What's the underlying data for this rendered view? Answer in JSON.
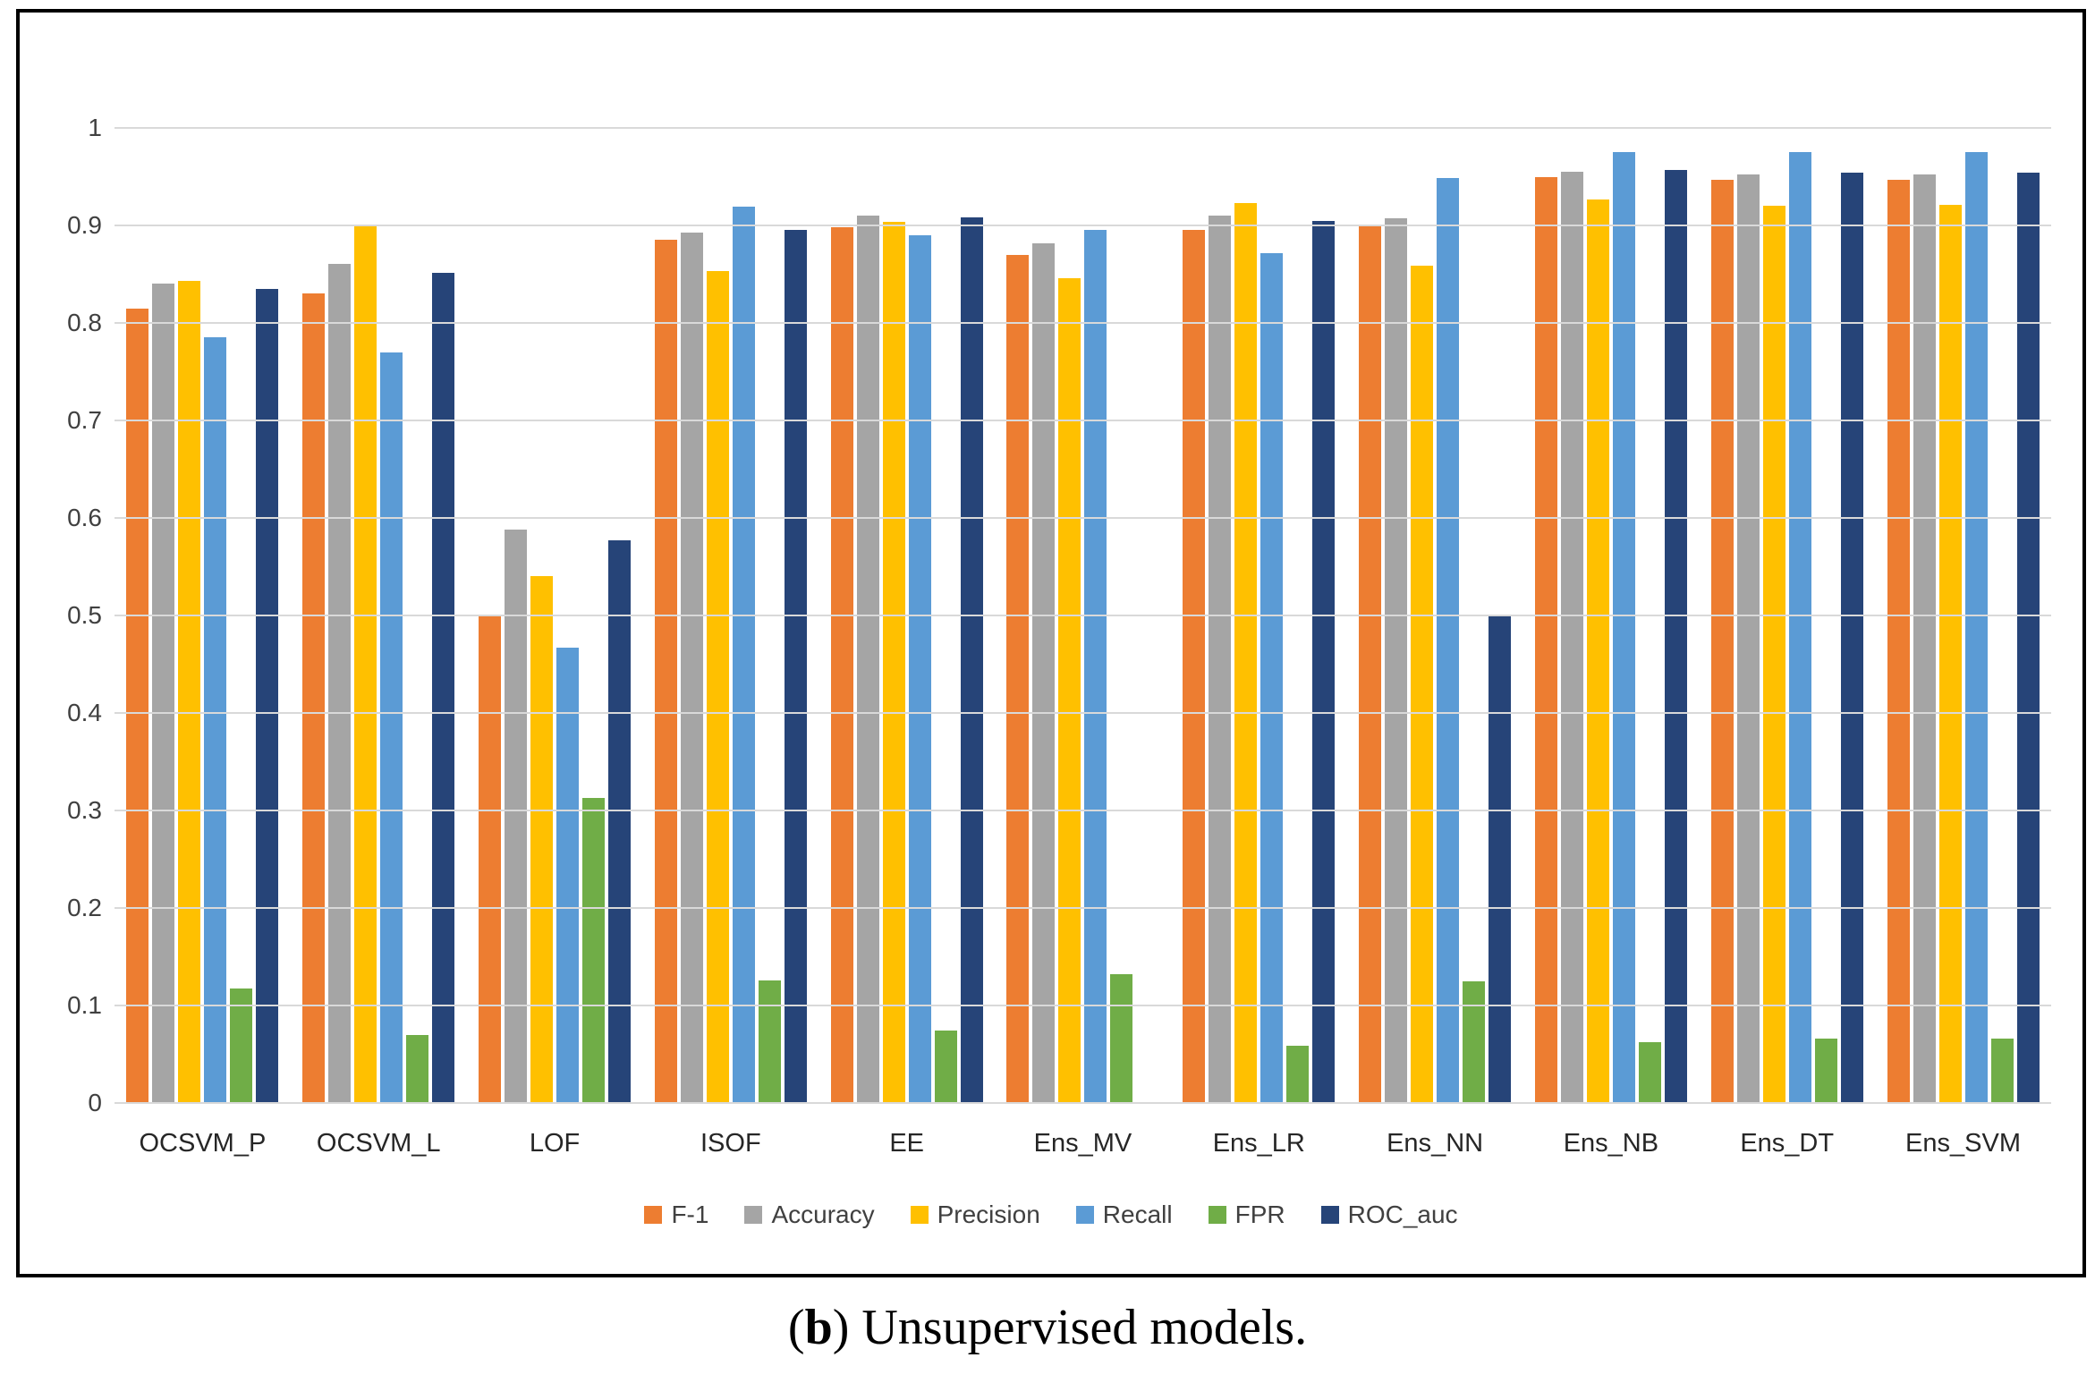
{
  "figure": {
    "caption": {
      "open_paren": "(",
      "bold_letter": "b",
      "rest": ") Unsupervised models."
    }
  },
  "chart_data": {
    "type": "bar",
    "title": "",
    "xlabel": "",
    "ylabel": "",
    "ylim": [
      0,
      1
    ],
    "grid": true,
    "legend_position": "bottom",
    "gridline_color": "#d9d9d9",
    "ytick_labels": [
      "1",
      "0.9",
      "0.8",
      "0.7",
      "0.6",
      "0.5",
      "0.4",
      "0.3",
      "0.2",
      "0.1",
      "0"
    ],
    "yticks": [
      1,
      0.9,
      0.8,
      0.7,
      0.6,
      0.5,
      0.4,
      0.3,
      0.2,
      0.1,
      0
    ],
    "categories": [
      "OCSVM_P",
      "OCSVM_L",
      "LOF",
      "ISOF",
      "EE",
      "Ens_MV",
      "Ens_LR",
      "Ens_NN",
      "Ens_NB",
      "Ens_DT",
      "Ens_SVM"
    ],
    "series": [
      {
        "name": "F-1",
        "color": "#ED7D31",
        "values": [
          0.815,
          0.83,
          0.5,
          0.885,
          0.898,
          0.87,
          0.895,
          0.9,
          0.95,
          0.947,
          0.947
        ]
      },
      {
        "name": "Accuracy",
        "color": "#A5A5A5",
        "values": [
          0.84,
          0.861,
          0.588,
          0.893,
          0.91,
          0.882,
          0.91,
          0.907,
          0.955,
          0.952,
          0.952
        ]
      },
      {
        "name": "Precision",
        "color": "#FFC000",
        "values": [
          0.843,
          0.9,
          0.54,
          0.853,
          0.904,
          0.846,
          0.923,
          0.859,
          0.927,
          0.92,
          0.921
        ]
      },
      {
        "name": "Recall",
        "color": "#5B9BD5",
        "values": [
          0.785,
          0.77,
          0.467,
          0.919,
          0.89,
          0.895,
          0.872,
          0.949,
          0.975,
          0.975,
          0.975
        ]
      },
      {
        "name": "FPR",
        "color": "#70AD47",
        "values": [
          0.117,
          0.07,
          0.313,
          0.126,
          0.074,
          0.132,
          0.059,
          0.125,
          0.062,
          0.066,
          0.066
        ]
      },
      {
        "name": "ROC_auc",
        "color": "#264478",
        "values": [
          0.835,
          0.851,
          0.577,
          0.895,
          0.908,
          null,
          0.905,
          0.5,
          0.957,
          0.954,
          0.954
        ]
      }
    ]
  }
}
